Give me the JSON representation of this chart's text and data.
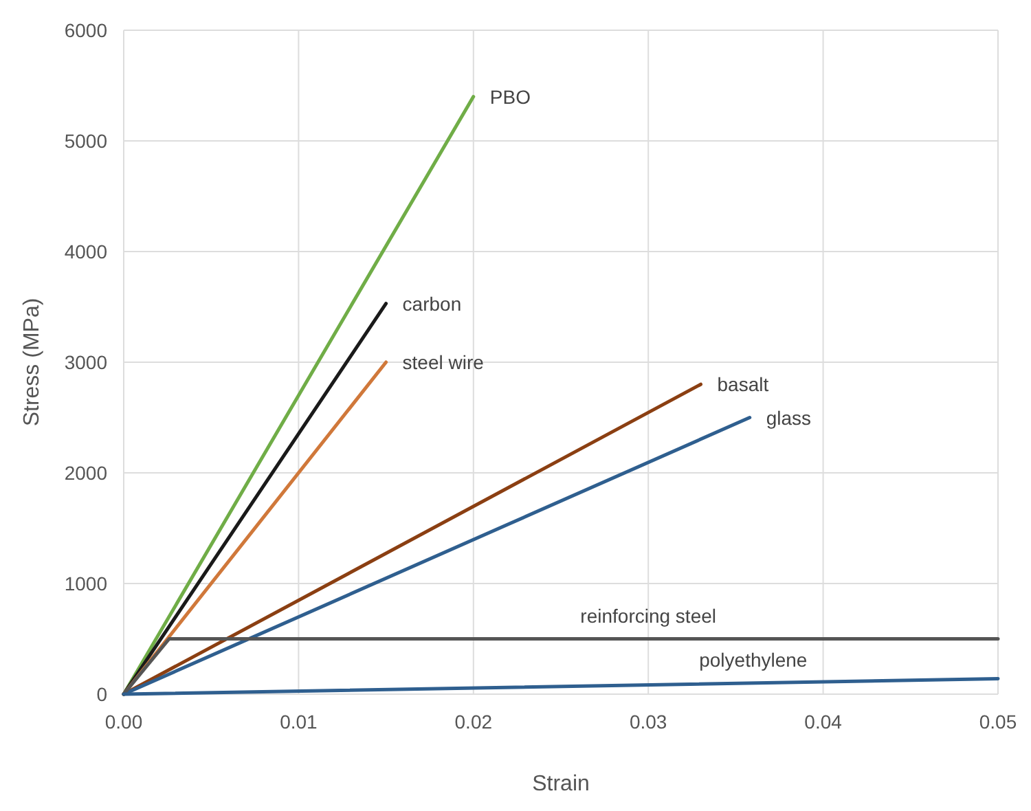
{
  "chart_data": {
    "type": "line",
    "xlabel": "Strain",
    "ylabel": "Stress (MPa)",
    "xlim": [
      0,
      0.05
    ],
    "ylim": [
      0,
      6000
    ],
    "xticks": [
      {
        "value": 0,
        "label": "0.00"
      },
      {
        "value": 0.01,
        "label": "0.01"
      },
      {
        "value": 0.02,
        "label": "0.02"
      },
      {
        "value": 0.03,
        "label": "0.03"
      },
      {
        "value": 0.04,
        "label": "0.04"
      },
      {
        "value": 0.05,
        "label": "0.05"
      }
    ],
    "yticks": [
      0,
      1000,
      2000,
      3000,
      4000,
      5000,
      6000
    ],
    "grid": true,
    "marker": "none",
    "line_style": "solid",
    "series": [
      {
        "name": "PBO",
        "color": "#70ad47",
        "x": [
          0,
          0.02
        ],
        "values": [
          0,
          5400
        ]
      },
      {
        "name": "carbon",
        "color": "#1a1a1a",
        "x": [
          0,
          0.015
        ],
        "values": [
          0,
          3530
        ]
      },
      {
        "name": "steel wire",
        "color": "#d0783a",
        "x": [
          0,
          0.015
        ],
        "values": [
          0,
          3000
        ]
      },
      {
        "name": "basalt",
        "color": "#8b3f12",
        "x": [
          0,
          0.033
        ],
        "values": [
          0,
          2800
        ]
      },
      {
        "name": "glass",
        "color": "#2f5f8f",
        "x": [
          0,
          0.0358
        ],
        "values": [
          0,
          2500
        ]
      },
      {
        "name": "reinforcing steel",
        "color": "#555555",
        "x": [
          0,
          0.0026,
          0.05
        ],
        "values": [
          0,
          500,
          500
        ]
      },
      {
        "name": "polyethylene",
        "color": "#2f5f8f",
        "x": [
          0,
          0.05
        ],
        "values": [
          0,
          140
        ]
      }
    ]
  }
}
